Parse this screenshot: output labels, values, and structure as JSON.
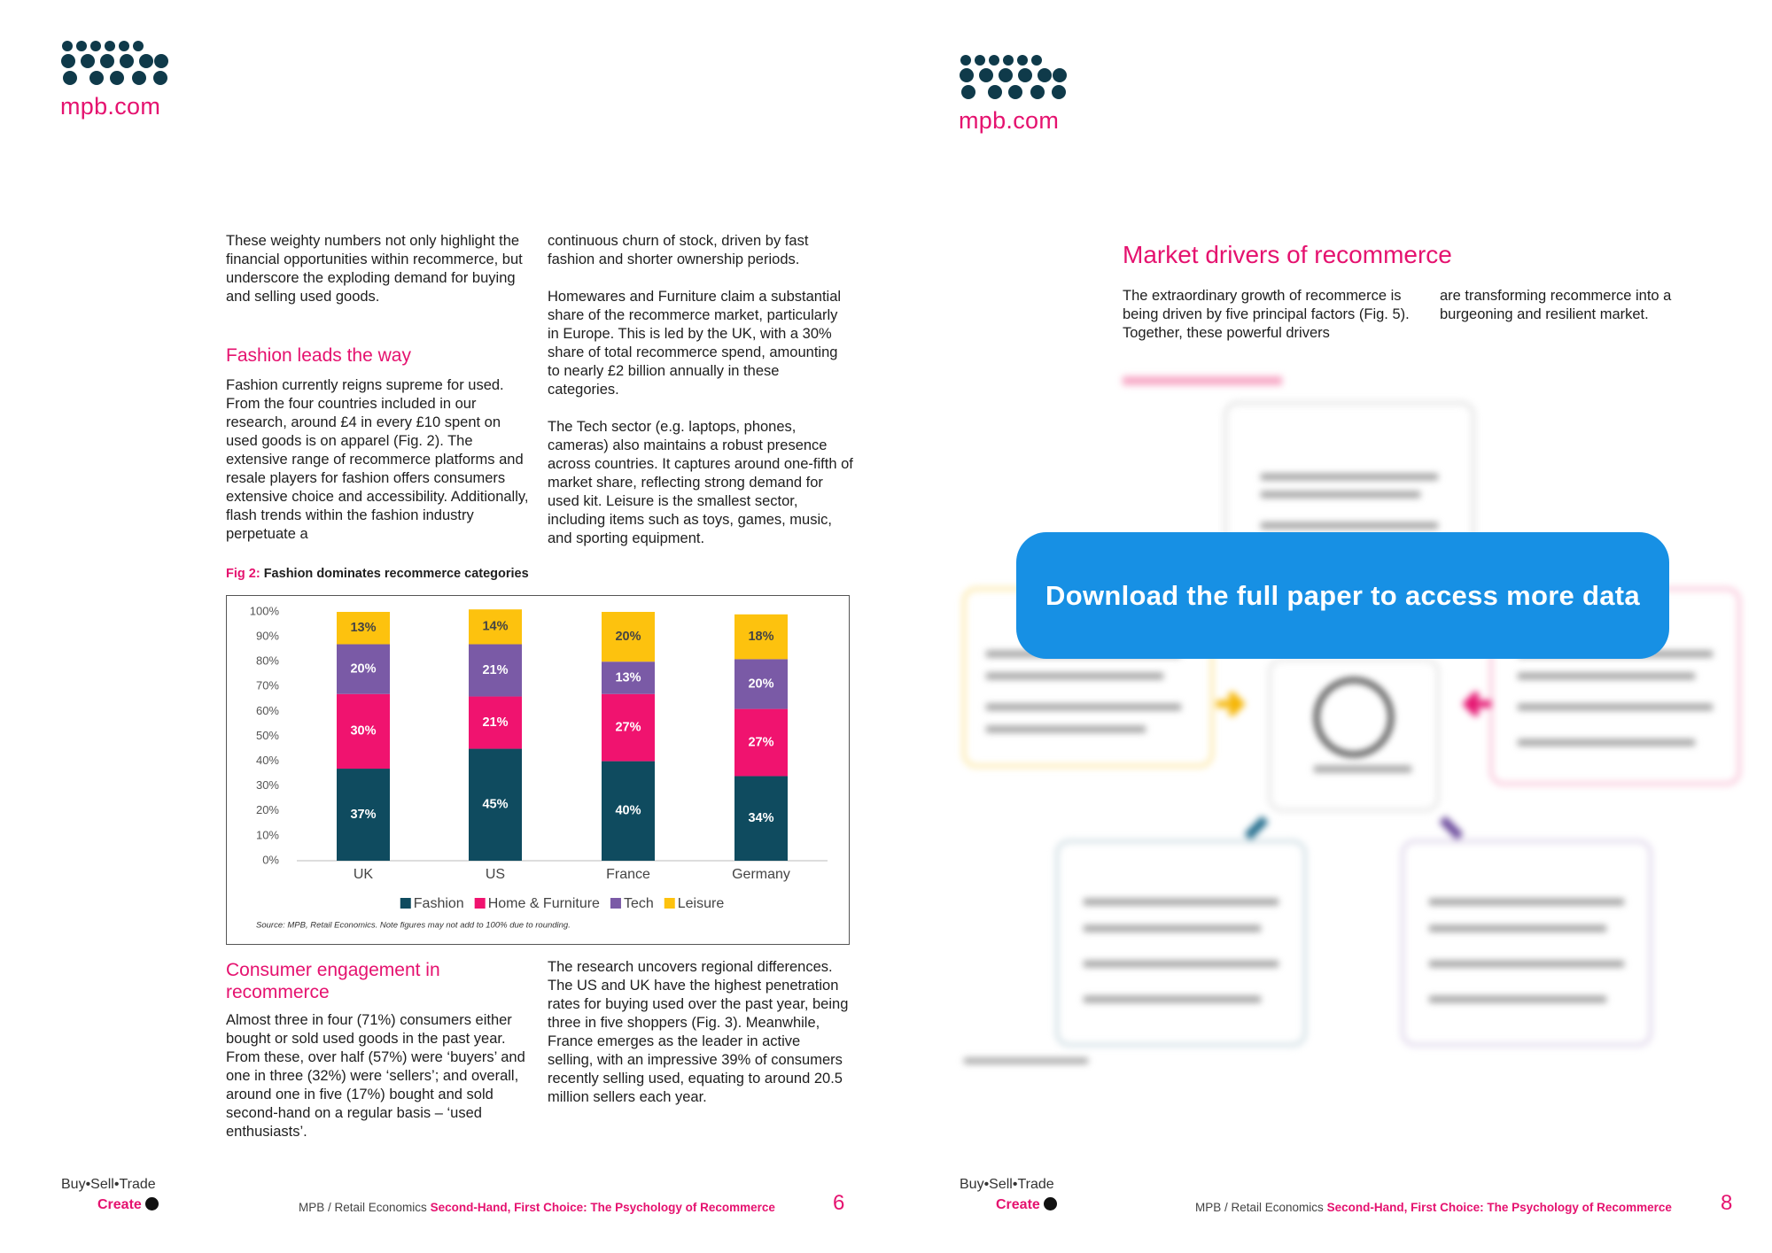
{
  "left_page": {
    "logo_text": "mpb.com",
    "col1_intro": "These weighty numbers not only highlight the financial opportunities within recommerce, but underscore the exploding demand for buying and selling used goods.",
    "heading_fashion": "Fashion leads the way",
    "col1_fashion": "Fashion currently reigns supreme for used. From the four countries included in our research, around £4 in every £10 spent on used goods is on apparel (Fig. 2). The extensive range of recommerce platforms and resale players for fashion offers consumers extensive choice and accessibility. Additionally, flash trends within the fashion industry perpetuate a",
    "col2_churn": "continuous churn of stock, driven by fast fashion and shorter ownership periods.",
    "col2_homewares": "Homewares and Furniture claim a substantial share of the recommerce market, particularly in Europe. This is led by the UK, with a 30% share of total recommerce spend, amounting to nearly £2 billion annually in these categories.",
    "col2_tech": "The Tech sector (e.g. laptops, phones, cameras) also maintains a robust presence across countries. It captures around one-fifth of market share, reflecting strong demand for used kit. Leisure is the smallest sector, including items such as toys, games, music, and sporting equipment.",
    "heading_engagement": "Consumer engagement in recommerce",
    "col1_engagement": "Almost three in four (71%) consumers either bought or sold used goods in the past year. From these, over half (57%) were ‘buyers’ and one in three (32%) were ‘sellers’; and overall, around one in five (17%) bought and sold second-hand on a regular basis – ‘used enthusiasts’.",
    "col2_regional": "The research uncovers regional differences. The US and UK have the highest penetration rates for buying used over the past year, being three in five shoppers (Fig. 3). Meanwhile, France emerges as the leader in active selling, with an impressive 39% of consumers recently selling used, equating to around 20.5 million sellers each year.",
    "footer_tagline": "Buy•Sell•Trade",
    "footer_create": "Create",
    "footer_publisher": "MPB / Retail Economics",
    "footer_title": "Second-Hand, First Choice: The Psychology of Recommerce",
    "page_number": "6"
  },
  "chart_data": {
    "type": "stacked-bar",
    "figure_label": "Fig 2:",
    "title": "Fashion dominates recommerce categories",
    "categories": [
      "UK",
      "US",
      "France",
      "Germany"
    ],
    "series": [
      {
        "name": "Fashion",
        "color": "#0f4b5f",
        "values": [
          37,
          45,
          40,
          34
        ],
        "value_labels": [
          "37%",
          "45%",
          "40%",
          "34%"
        ]
      },
      {
        "name": "Home & Furniture",
        "color": "#f0136f",
        "values": [
          30,
          21,
          27,
          27
        ],
        "value_labels": [
          "30%",
          "21%",
          "27%",
          "27%"
        ]
      },
      {
        "name": "Tech",
        "color": "#7a5aa6",
        "values": [
          20,
          21,
          13,
          20
        ],
        "value_labels": [
          "20%",
          "21%",
          "13%",
          "20%"
        ]
      },
      {
        "name": "Leisure",
        "color": "#fdc20e",
        "values": [
          13,
          14,
          20,
          18
        ],
        "value_labels": [
          "13%",
          "14%",
          "20%",
          "18%"
        ]
      }
    ],
    "ylim": [
      0,
      100
    ],
    "yticks": [
      {
        "value": 0,
        "label": "0%"
      },
      {
        "value": 10,
        "label": "10%"
      },
      {
        "value": 20,
        "label": "20%"
      },
      {
        "value": 30,
        "label": "30%"
      },
      {
        "value": 40,
        "label": "40%"
      },
      {
        "value": 50,
        "label": "50%"
      },
      {
        "value": 60,
        "label": "60%"
      },
      {
        "value": 70,
        "label": "70%"
      },
      {
        "value": 80,
        "label": "80%"
      },
      {
        "value": 90,
        "label": "90%"
      },
      {
        "value": 100,
        "label": "100%"
      }
    ],
    "legend": "bottom",
    "source": "Source: MPB, Retail Economics. Note figures may not add to 100% due to rounding."
  },
  "right_page": {
    "logo_text": "mpb.com",
    "title": "Market drivers of recommerce",
    "col1_intro": "The extraordinary growth of recommerce is being driven by five principal factors (Fig. 5). Together, these powerful drivers",
    "col2_intro": "are transforming recommerce into a burgeoning and resilient market.",
    "cta": "Download the full paper to access more data",
    "footer_tagline": "Buy•Sell•Trade",
    "footer_create": "Create",
    "footer_publisher": "MPB / Retail Economics",
    "footer_title": "Second-Hand, First Choice: The Psychology of Recommerce",
    "page_number": "8"
  }
}
